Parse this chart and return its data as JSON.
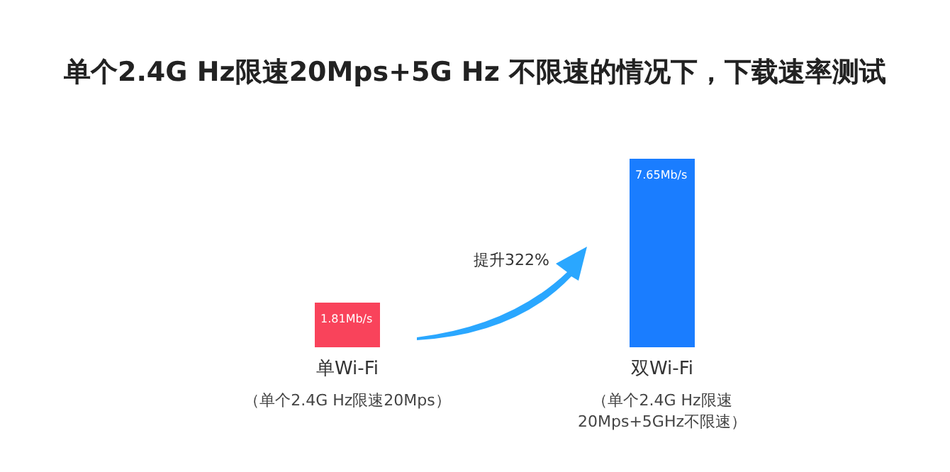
{
  "chart_data": {
    "type": "bar",
    "title": "单个2.4G Hz限速20Mps+5G Hz 不限速的情况下，下载速率测试",
    "categories": [
      "单Wi-Fi",
      "双Wi-Fi"
    ],
    "values": [
      1.81,
      7.65
    ],
    "colors": [
      "#f9435b",
      "#1a7dff"
    ],
    "value_labels": [
      "1.81Mb/s",
      "7.65Mb/s"
    ],
    "annotations": [
      "提升322%",
      "（单个2.4G Hz限速20Mps）",
      "（单个2.4G Hz限速20Mps+5GHz不限速）"
    ]
  }
}
